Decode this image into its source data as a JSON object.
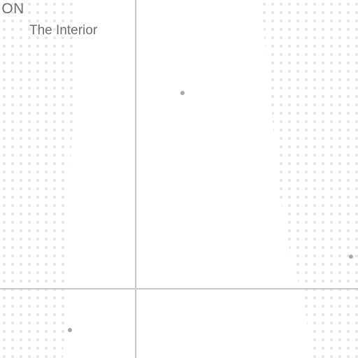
{
  "map": {
    "labels": {
      "region_partial": "ION",
      "area_name": "The Interior"
    },
    "colors": {
      "background": "#ffffff",
      "land_dot": "#e8e8de",
      "grid_line": "#c8c8c8",
      "point_marker": "#a8a8ae",
      "label_text": "#6f6f6f"
    }
  }
}
